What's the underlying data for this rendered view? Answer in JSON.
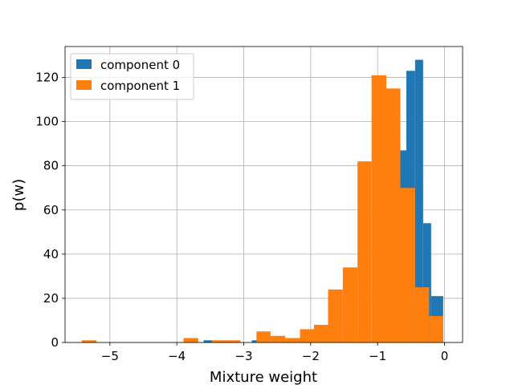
{
  "chart_data": {
    "type": "bar",
    "xlabel": "Mixture weight",
    "ylabel": "p(w)",
    "xlim": [
      -5.67,
      0.27
    ],
    "ylim": [
      0,
      134
    ],
    "xticks": [
      -5,
      -4,
      -3,
      -2,
      -1,
      0
    ],
    "xtick_labels": [
      "−5",
      "−4",
      "−3",
      "−2",
      "−1",
      "0"
    ],
    "yticks": [
      0,
      20,
      40,
      60,
      80,
      100,
      120
    ],
    "ytick_labels": [
      "0",
      "20",
      "40",
      "60",
      "80",
      "100",
      "120"
    ],
    "grid": true,
    "legend_position": "top-left",
    "series": [
      {
        "name": "component 0",
        "color": "#1f77b4",
        "bins": [
          {
            "x0": -3.6,
            "x1": -3.48,
            "count": 1
          },
          {
            "x0": -2.88,
            "x1": -2.76,
            "count": 1
          },
          {
            "x0": -0.68,
            "x1": -0.57,
            "count": 87
          },
          {
            "x0": -0.57,
            "x1": -0.44,
            "count": 123
          },
          {
            "x0": -0.44,
            "x1": -0.32,
            "count": 128
          },
          {
            "x0": -0.32,
            "x1": -0.2,
            "count": 54
          },
          {
            "x0": -0.2,
            "x1": -0.02,
            "count": 21
          }
        ]
      },
      {
        "name": "component 1",
        "color": "#ff7f0e",
        "bins": [
          {
            "x0": -5.42,
            "x1": -5.2,
            "count": 1
          },
          {
            "x0": -3.9,
            "x1": -3.68,
            "count": 2
          },
          {
            "x0": -3.48,
            "x1": -3.05,
            "count": 1
          },
          {
            "x0": -2.81,
            "x1": -2.6,
            "count": 5
          },
          {
            "x0": -2.6,
            "x1": -2.38,
            "count": 3
          },
          {
            "x0": -2.38,
            "x1": -2.16,
            "count": 2
          },
          {
            "x0": -2.16,
            "x1": -1.95,
            "count": 6
          },
          {
            "x0": -1.95,
            "x1": -1.74,
            "count": 8
          },
          {
            "x0": -1.74,
            "x1": -1.52,
            "count": 24
          },
          {
            "x0": -1.52,
            "x1": -1.3,
            "count": 34
          },
          {
            "x0": -1.3,
            "x1": -1.09,
            "count": 82
          },
          {
            "x0": -1.09,
            "x1": -0.87,
            "count": 121
          },
          {
            "x0": -0.87,
            "x1": -0.66,
            "count": 115
          },
          {
            "x0": -0.66,
            "x1": -0.44,
            "count": 70
          },
          {
            "x0": -0.44,
            "x1": -0.23,
            "count": 25
          },
          {
            "x0": -0.23,
            "x1": -0.02,
            "count": 12
          }
        ]
      }
    ]
  }
}
